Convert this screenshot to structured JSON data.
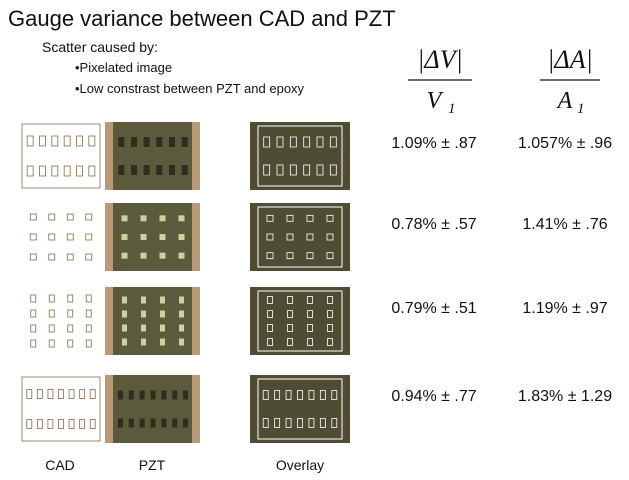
{
  "title": "Gauge variance between CAD and PZT",
  "subtitle": "Scatter caused by:",
  "bullets": [
    "•Pixelated image",
    "•Low constrast between PZT and epoxy"
  ],
  "formulas": [
    {
      "numerator": "|ΔV|",
      "denominator": "V",
      "subscript": "1"
    },
    {
      "numerator": "|ΔA|",
      "denominator": "A",
      "subscript": "1"
    }
  ],
  "rows": [
    {
      "dv": "1.09% ± .87",
      "da": "1.057% ± .96"
    },
    {
      "dv": "0.78% ± .57",
      "da": "1.41% ± .76"
    },
    {
      "dv": "0.79% ± .51",
      "da": "1.19% ± .97"
    },
    {
      "dv": "0.94% ± .77",
      "da": "1.83% ± 1.29"
    }
  ],
  "column_labels": [
    "CAD",
    "PZT",
    "Overlay"
  ]
}
